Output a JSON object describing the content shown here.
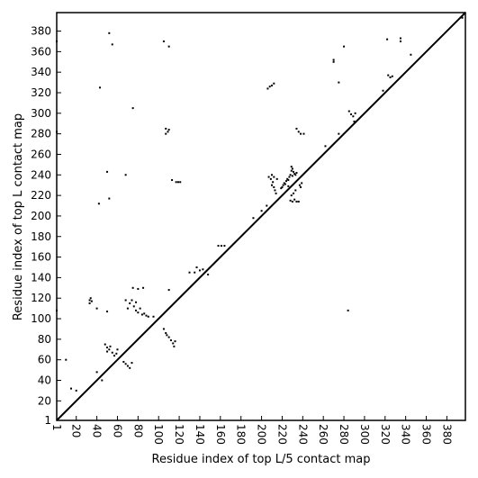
{
  "chart_data": {
    "type": "scatter",
    "xlabel": "Residue index of top L/5 contact map",
    "ylabel": "Residue index of top L contact map",
    "xlim": [
      1,
      398
    ],
    "ylim": [
      1,
      398
    ],
    "xticks": [
      1,
      20,
      40,
      60,
      80,
      100,
      120,
      140,
      160,
      180,
      200,
      220,
      240,
      260,
      280,
      300,
      320,
      340,
      360,
      380
    ],
    "yticks": [
      1,
      20,
      40,
      60,
      80,
      100,
      120,
      140,
      160,
      180,
      200,
      220,
      240,
      260,
      280,
      300,
      320,
      340,
      360,
      380
    ],
    "diagonal": true,
    "color": "#000000",
    "x": [
      220,
      221,
      222,
      223,
      224,
      225,
      226,
      227,
      228,
      229,
      230,
      231,
      232,
      233,
      234,
      229,
      230,
      226,
      219,
      207,
      209,
      210,
      211,
      212,
      213,
      214,
      215,
      210,
      212,
      237,
      238,
      239,
      228,
      230,
      232,
      234,
      236,
      229,
      231,
      233,
      206,
      208,
      210,
      212,
      117,
      119,
      121,
      113,
      107,
      107,
      109,
      110,
      33,
      33,
      34,
      35,
      48,
      50,
      52,
      53,
      55,
      57,
      59,
      60,
      50,
      70,
      72,
      74,
      76,
      78,
      80,
      82,
      84,
      86,
      88,
      90,
      75,
      80,
      68,
      78,
      105,
      107,
      108,
      110,
      112,
      114,
      115,
      116,
      66,
      68,
      70,
      72,
      74,
      135,
      137,
      140,
      143,
      158,
      161,
      164,
      285,
      287,
      289,
      291,
      234,
      236,
      238,
      241,
      323,
      325,
      327,
      270,
      270,
      335,
      335,
      1,
      1,
      1,
      52,
      55,
      105,
      110,
      43,
      42,
      52,
      50,
      68,
      75,
      10,
      15,
      20,
      40,
      45,
      85,
      95,
      110,
      130,
      200,
      205,
      192,
      275,
      280,
      318,
      322,
      345,
      395,
      290,
      275,
      262,
      148,
      284,
      40,
      50
    ],
    "values": [
      228,
      230,
      232,
      231,
      234,
      236,
      235,
      238,
      240,
      244,
      246,
      243,
      241,
      240,
      242,
      248,
      239,
      229,
      227,
      238,
      236,
      240,
      233,
      228,
      225,
      222,
      236,
      230,
      238,
      230,
      228,
      232,
      215,
      214,
      216,
      214,
      214,
      220,
      222,
      225,
      324,
      326,
      327,
      329,
      233,
      233,
      233,
      235,
      280,
      285,
      282,
      284,
      115,
      118,
      120,
      117,
      75,
      72,
      70,
      73,
      67,
      64,
      66,
      70,
      68,
      110,
      115,
      118,
      112,
      108,
      106,
      110,
      104,
      105,
      103,
      102,
      130,
      129,
      118,
      116,
      90,
      86,
      84,
      82,
      79,
      76,
      73,
      78,
      58,
      56,
      54,
      52,
      57,
      145,
      150,
      147,
      148,
      171,
      171,
      171,
      302,
      299,
      297,
      300,
      285,
      282,
      280,
      280,
      337,
      335,
      336,
      350,
      352,
      370,
      373,
      370,
      282,
      108,
      378,
      367,
      370,
      365,
      325,
      212,
      217,
      243,
      240,
      305,
      60,
      32,
      30,
      48,
      40,
      130,
      102,
      128,
      145,
      205,
      210,
      198,
      280,
      365,
      322,
      372,
      357,
      393,
      292,
      330,
      268,
      143,
      108,
      110,
      107
    ]
  }
}
